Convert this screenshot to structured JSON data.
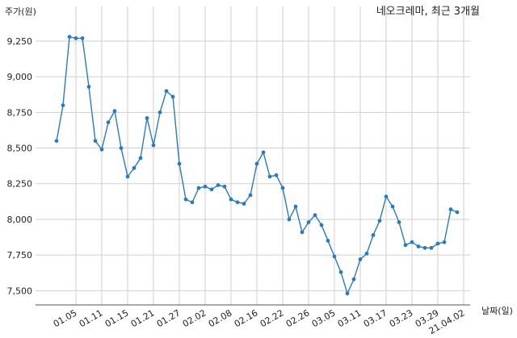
{
  "chart_data": {
    "type": "line",
    "title": "네오크레마, 최근 3개월",
    "ylabel": "주가(원)",
    "xlabel": "날짜(일)",
    "ylim": [
      7400,
      9380
    ],
    "yticks": [
      {
        "value": 7500,
        "label": "7,500"
      },
      {
        "value": 7750,
        "label": "7,750"
      },
      {
        "value": 8000,
        "label": "8,000"
      },
      {
        "value": 8250,
        "label": "8,250"
      },
      {
        "value": 8500,
        "label": "8,500"
      },
      {
        "value": 8750,
        "label": "8,750"
      },
      {
        "value": 9000,
        "label": "9,000"
      },
      {
        "value": 9250,
        "label": "9,250"
      }
    ],
    "xticks": [
      {
        "index": 3,
        "label": "01.05"
      },
      {
        "index": 7,
        "label": "01.11"
      },
      {
        "index": 11,
        "label": "01.15"
      },
      {
        "index": 15,
        "label": "01.21"
      },
      {
        "index": 19,
        "label": "01.27"
      },
      {
        "index": 23,
        "label": "02.02"
      },
      {
        "index": 27,
        "label": "02.08"
      },
      {
        "index": 31,
        "label": "02.16"
      },
      {
        "index": 35,
        "label": "02.22"
      },
      {
        "index": 39,
        "label": "02.26"
      },
      {
        "index": 43,
        "label": "03.05"
      },
      {
        "index": 47,
        "label": "03.11"
      },
      {
        "index": 51,
        "label": "03.17"
      },
      {
        "index": 55,
        "label": "03.23"
      },
      {
        "index": 59,
        "label": "03.29"
      },
      {
        "index": 63,
        "label": "21.04.02"
      }
    ],
    "grid": true,
    "line_color": "#2b7bba",
    "series": [
      {
        "values": [
          8550,
          8800,
          9280,
          9270,
          9270,
          8930,
          8550,
          8490,
          8680,
          8760,
          8500,
          8300,
          8360,
          8430,
          8710,
          8520,
          8750,
          8900,
          8860,
          8390,
          8140,
          8120,
          8220,
          8230,
          8210,
          8240,
          8230,
          8140,
          8120,
          8110,
          8170,
          8390,
          8470,
          8300,
          8310,
          8220,
          8000,
          8090,
          7910,
          7980,
          8030,
          7960,
          7850,
          7740,
          7630,
          7480,
          7580,
          7720,
          7760,
          7890,
          7990,
          8160,
          8090,
          7980,
          7820,
          7840,
          7810,
          7800,
          7800,
          7830,
          7840,
          8070,
          8050
        ]
      }
    ]
  }
}
